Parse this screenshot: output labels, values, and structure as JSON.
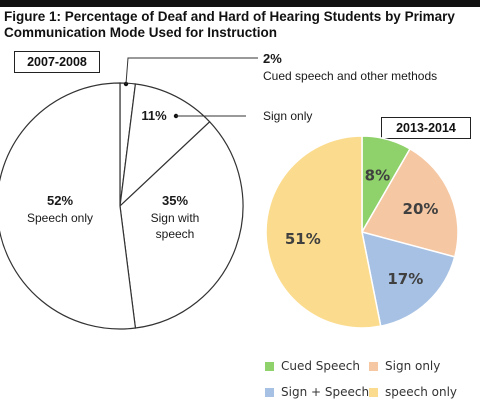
{
  "title_line1": "Figure 1: Percentage of Deaf and Hard of Hearing Students by Primary",
  "title_line2": "Communication Mode Used for Instruction",
  "chart_data": [
    {
      "type": "pie",
      "period": "2007-2008",
      "slices": [
        {
          "label": "Cued speech and other methods",
          "value": 2,
          "value_label": "2%"
        },
        {
          "label": "Sign only",
          "value": 11,
          "value_label": "11%"
        },
        {
          "label": "Sign with speech",
          "value": 35,
          "value_label": "35%"
        },
        {
          "label": "Speech only",
          "value": 52,
          "value_label": "52%"
        }
      ],
      "style": "outline",
      "sign_with_speech_label_lines": [
        "Sign with",
        "speech"
      ]
    },
    {
      "type": "pie",
      "period": "2013-2014",
      "slices": [
        {
          "label": "Cued Speech",
          "value": 8,
          "value_label": "8%",
          "color": "#8fd16a"
        },
        {
          "label": "Sign only",
          "value": 20,
          "value_label": "20%",
          "color": "#f5c7a3"
        },
        {
          "label": "Sign + Speech",
          "value": 17,
          "value_label": "17%",
          "color": "#a6c1e3"
        },
        {
          "label": "speech only",
          "value": 51,
          "value_label": "51%",
          "color": "#fbdc8e"
        }
      ],
      "legend": [
        {
          "label": "Cued Speech",
          "color": "#8fd16a"
        },
        {
          "label": "Sign only",
          "color": "#f5c7a3"
        },
        {
          "label": "Sign + Speech",
          "color": "#a6c1e3"
        },
        {
          "label": "speech only",
          "color": "#fbdc8e"
        }
      ]
    }
  ]
}
